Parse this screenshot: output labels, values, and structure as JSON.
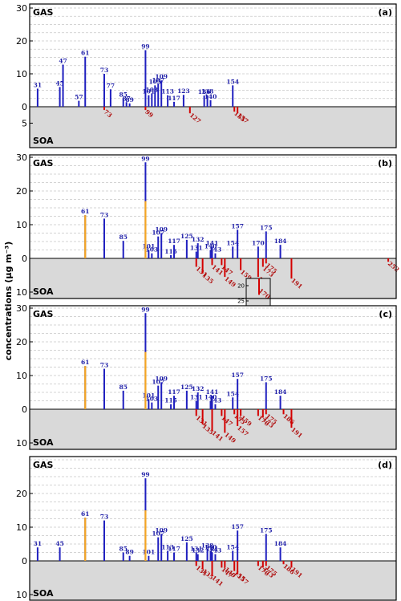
{
  "figure": {
    "ylabel": "concentrations (μg m⁻³)",
    "gas_tag": "GAS",
    "soa_tag": "SOA",
    "colors": {
      "gas": "#1f1fbf",
      "gas_highlight": "#f5a623",
      "soa": "#d40000",
      "soa_bg": "#d9d9d9"
    }
  },
  "chart_data": [
    {
      "type": "bar",
      "panel_label": "(a)",
      "x_range": [
        26,
        257
      ],
      "y_ticks_gas": [
        0,
        10,
        20,
        30
      ],
      "y_ticks_soa": [
        5
      ],
      "ylim": [
        -5,
        30
      ],
      "grid": true,
      "gas": [
        {
          "x": 31,
          "v": 5.5,
          "label": "31"
        },
        {
          "x": 45,
          "v": 6.0,
          "label": "45"
        },
        {
          "x": 47,
          "v": 12.8,
          "label": "47"
        },
        {
          "x": 57,
          "v": 1.8,
          "label": "57"
        },
        {
          "x": 61,
          "v": 15.2,
          "label": "61"
        },
        {
          "x": 73,
          "v": 10.0,
          "label": "73"
        },
        {
          "x": 77,
          "v": 5.3,
          "label": "77"
        },
        {
          "x": 85,
          "v": 2.6,
          "label": "85"
        },
        {
          "x": 87,
          "v": 1.4,
          "label": "87"
        },
        {
          "x": 89,
          "v": 1.0,
          "label": "89"
        },
        {
          "x": 99,
          "v": 17.2,
          "label": "99"
        },
        {
          "x": 101,
          "v": 3.5,
          "label": "101"
        },
        {
          "x": 103,
          "v": 4.0,
          "label": "103"
        },
        {
          "x": 105,
          "v": 6.5,
          "label": "105"
        },
        {
          "x": 107,
          "v": 7.0,
          "label": "107"
        },
        {
          "x": 109,
          "v": 8.0,
          "label": "109"
        },
        {
          "x": 113,
          "v": 3.5,
          "label": "113"
        },
        {
          "x": 117,
          "v": 1.5,
          "label": "117"
        },
        {
          "x": 123,
          "v": 3.6,
          "label": "123"
        },
        {
          "x": 136,
          "v": 3.4,
          "label": "136"
        },
        {
          "x": 138,
          "v": 3.5,
          "label": "138"
        },
        {
          "x": 140,
          "v": 2.0,
          "label": "140"
        },
        {
          "x": 154,
          "v": 6.5,
          "label": "154"
        }
      ],
      "soa": [
        {
          "x": 73,
          "v": 1.0,
          "label": "73"
        },
        {
          "x": 99,
          "v": 1.0,
          "label": "99"
        },
        {
          "x": 127,
          "v": 2.0,
          "label": "127"
        },
        {
          "x": 155,
          "v": 1.5,
          "label": "155"
        },
        {
          "x": 157,
          "v": 2.0,
          "label": "157"
        }
      ],
      "highlight": []
    },
    {
      "type": "bar",
      "panel_label": "(b)",
      "x_range": [
        26,
        257
      ],
      "y_ticks_gas": [
        0,
        10,
        20,
        30
      ],
      "y_ticks_soa": [
        10
      ],
      "ylim": [
        -10,
        30
      ],
      "grid": true,
      "gas": [
        {
          "x": 61,
          "v": 12.8,
          "label": "61"
        },
        {
          "x": 73,
          "v": 11.8,
          "label": "73"
        },
        {
          "x": 85,
          "v": 5.2,
          "label": "85"
        },
        {
          "x": 99,
          "v": 28.5,
          "label": "99"
        },
        {
          "x": 101,
          "v": 2.5,
          "label": "101"
        },
        {
          "x": 103,
          "v": 1.5,
          "label": "103"
        },
        {
          "x": 107,
          "v": 6.5,
          "label": "107"
        },
        {
          "x": 109,
          "v": 7.5,
          "label": "109"
        },
        {
          "x": 115,
          "v": 1.0,
          "label": "115"
        },
        {
          "x": 117,
          "v": 4.0,
          "label": "117"
        },
        {
          "x": 125,
          "v": 5.5,
          "label": "125"
        },
        {
          "x": 131,
          "v": 2.0,
          "label": "131"
        },
        {
          "x": 132,
          "v": 4.5,
          "label": "132"
        },
        {
          "x": 140,
          "v": 2.5,
          "label": "140"
        },
        {
          "x": 141,
          "v": 3.5,
          "label": "141"
        },
        {
          "x": 143,
          "v": 1.5,
          "label": "143"
        },
        {
          "x": 154,
          "v": 3.5,
          "label": "154"
        },
        {
          "x": 157,
          "v": 8.5,
          "label": "157"
        },
        {
          "x": 170,
          "v": 3.5,
          "label": "170"
        },
        {
          "x": 175,
          "v": 8.0,
          "label": "175"
        },
        {
          "x": 184,
          "v": 4.0,
          "label": "184"
        }
      ],
      "soa": [
        {
          "x": 131,
          "v": 2.5,
          "label": "131"
        },
        {
          "x": 135,
          "v": 4.5,
          "label": "135"
        },
        {
          "x": 141,
          "v": 2.0,
          "label": "141"
        },
        {
          "x": 147,
          "v": 2.0,
          "label": "147"
        },
        {
          "x": 149,
          "v": 5.5,
          "label": "149"
        },
        {
          "x": 159,
          "v": 3.5,
          "label": "159"
        },
        {
          "x": 170,
          "v": 5.5,
          "label": "170"
        },
        {
          "x": 173,
          "v": 2.5,
          "label": "173"
        },
        {
          "x": 175,
          "v": 1.5,
          "label": "175"
        },
        {
          "x": 191,
          "v": 6.0,
          "label": "191"
        },
        {
          "x": 252,
          "v": 1.0,
          "label": "252"
        }
      ],
      "highlight": [
        {
          "x": 61,
          "v": 12.8
        },
        {
          "x": 99,
          "v": 17.0
        }
      ],
      "inset": {
        "ticks": [
          20,
          25
        ],
        "x": 170,
        "v": 23.0,
        "label": "170"
      }
    },
    {
      "type": "bar",
      "panel_label": "(c)",
      "x_range": [
        26,
        257
      ],
      "y_ticks_gas": [
        0,
        10,
        20,
        30
      ],
      "y_ticks_soa": [
        10
      ],
      "ylim": [
        -10,
        30
      ],
      "grid": true,
      "gas": [
        {
          "x": 61,
          "v": 12.8,
          "label": "61"
        },
        {
          "x": 73,
          "v": 12.0,
          "label": "73"
        },
        {
          "x": 85,
          "v": 5.5,
          "label": "85"
        },
        {
          "x": 99,
          "v": 28.5,
          "label": "99"
        },
        {
          "x": 101,
          "v": 3.0,
          "label": "101"
        },
        {
          "x": 103,
          "v": 2.0,
          "label": "103"
        },
        {
          "x": 107,
          "v": 7.0,
          "label": "107"
        },
        {
          "x": 109,
          "v": 8.0,
          "label": "109"
        },
        {
          "x": 115,
          "v": 1.5,
          "label": "115"
        },
        {
          "x": 117,
          "v": 4.0,
          "label": "117"
        },
        {
          "x": 125,
          "v": 5.5,
          "label": "125"
        },
        {
          "x": 131,
          "v": 2.5,
          "label": "131"
        },
        {
          "x": 132,
          "v": 5.0,
          "label": "132"
        },
        {
          "x": 140,
          "v": 2.5,
          "label": "140"
        },
        {
          "x": 141,
          "v": 4.0,
          "label": "141"
        },
        {
          "x": 143,
          "v": 1.5,
          "label": "143"
        },
        {
          "x": 154,
          "v": 3.5,
          "label": "154"
        },
        {
          "x": 157,
          "v": 9.0,
          "label": "157"
        },
        {
          "x": 175,
          "v": 8.0,
          "label": "175"
        },
        {
          "x": 184,
          "v": 4.0,
          "label": "184"
        }
      ],
      "soa": [
        {
          "x": 131,
          "v": 2.0,
          "label": "131"
        },
        {
          "x": 135,
          "v": 4.5,
          "label": "135"
        },
        {
          "x": 141,
          "v": 6.5,
          "label": "141"
        },
        {
          "x": 147,
          "v": 2.0,
          "label": "147"
        },
        {
          "x": 149,
          "v": 7.0,
          "label": "149"
        },
        {
          "x": 155,
          "v": 1.5,
          "label": "155"
        },
        {
          "x": 157,
          "v": 5.0,
          "label": "157"
        },
        {
          "x": 159,
          "v": 2.0,
          "label": "159"
        },
        {
          "x": 170,
          "v": 2.0,
          "label": "170"
        },
        {
          "x": 173,
          "v": 2.5,
          "label": "173"
        },
        {
          "x": 175,
          "v": 1.5,
          "label": "175"
        },
        {
          "x": 186,
          "v": 1.5,
          "label": "186"
        },
        {
          "x": 191,
          "v": 5.5,
          "label": "191"
        }
      ],
      "highlight": [
        {
          "x": 61,
          "v": 12.8
        },
        {
          "x": 99,
          "v": 17.0
        }
      ]
    },
    {
      "type": "bar",
      "panel_label": "(d)",
      "x_range": [
        26,
        257
      ],
      "y_ticks_gas": [
        0,
        10,
        20
      ],
      "y_ticks_soa": [
        10
      ],
      "ylim": [
        -10,
        30
      ],
      "grid": true,
      "gas": [
        {
          "x": 31,
          "v": 4.0,
          "label": "31"
        },
        {
          "x": 45,
          "v": 4.0,
          "label": "45"
        },
        {
          "x": 61,
          "v": 12.8,
          "label": "61"
        },
        {
          "x": 73,
          "v": 12.0,
          "label": "73"
        },
        {
          "x": 85,
          "v": 2.5,
          "label": "85"
        },
        {
          "x": 89,
          "v": 1.5,
          "label": "89"
        },
        {
          "x": 99,
          "v": 24.5,
          "label": "99"
        },
        {
          "x": 101,
          "v": 1.5,
          "label": "101"
        },
        {
          "x": 107,
          "v": 7.0,
          "label": "107"
        },
        {
          "x": 109,
          "v": 8.0,
          "label": "109"
        },
        {
          "x": 113,
          "v": 3.0,
          "label": "113"
        },
        {
          "x": 117,
          "v": 2.5,
          "label": "117"
        },
        {
          "x": 125,
          "v": 5.5,
          "label": "125"
        },
        {
          "x": 131,
          "v": 2.5,
          "label": "131"
        },
        {
          "x": 132,
          "v": 2.0,
          "label": "132"
        },
        {
          "x": 138,
          "v": 3.5,
          "label": "138"
        },
        {
          "x": 140,
          "v": 3.0,
          "label": "140"
        },
        {
          "x": 141,
          "v": 2.5,
          "label": "141"
        },
        {
          "x": 143,
          "v": 2.0,
          "label": "143"
        },
        {
          "x": 154,
          "v": 3.0,
          "label": "154"
        },
        {
          "x": 157,
          "v": 9.0,
          "label": "157"
        },
        {
          "x": 175,
          "v": 8.0,
          "label": "175"
        },
        {
          "x": 184,
          "v": 4.0,
          "label": "184"
        }
      ],
      "soa": [
        {
          "x": 131,
          "v": 1.5,
          "label": "131"
        },
        {
          "x": 135,
          "v": 2.5,
          "label": "135"
        },
        {
          "x": 141,
          "v": 4.5,
          "label": "141"
        },
        {
          "x": 147,
          "v": 2.0,
          "label": "147"
        },
        {
          "x": 149,
          "v": 2.0,
          "label": "149"
        },
        {
          "x": 155,
          "v": 3.0,
          "label": "155"
        },
        {
          "x": 157,
          "v": 4.0,
          "label": "157"
        },
        {
          "x": 170,
          "v": 1.5,
          "label": "170"
        },
        {
          "x": 173,
          "v": 2.0,
          "label": "173"
        },
        {
          "x": 175,
          "v": 1.5,
          "label": "175"
        },
        {
          "x": 186,
          "v": 1.0,
          "label": "186"
        },
        {
          "x": 191,
          "v": 2.0,
          "label": "191"
        }
      ],
      "highlight": [
        {
          "x": 61,
          "v": 12.8
        },
        {
          "x": 99,
          "v": 15.0
        }
      ]
    }
  ]
}
